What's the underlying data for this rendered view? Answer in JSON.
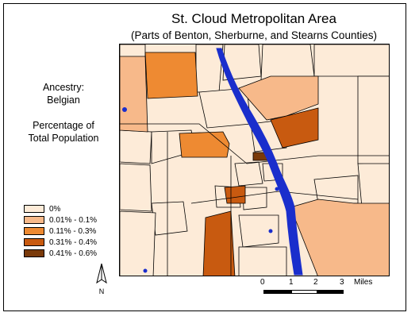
{
  "title": "St. Cloud Metropolitan Area",
  "subtitle": "(Parts of Benton, Sherburne, and Stearns Counties)",
  "variable": {
    "line1": "Ancestry:",
    "line2": "Belgian"
  },
  "measure": {
    "line1": "Percentage of",
    "line2": "Total Population"
  },
  "legend": [
    {
      "label": "0%",
      "color": "#fdebd8"
    },
    {
      "label": "0.01% - 0.1%",
      "color": "#f7b98a"
    },
    {
      "label": "0.11% - 0.3%",
      "color": "#ee8a32"
    },
    {
      "label": "0.31% - 0.4%",
      "color": "#c85a10"
    },
    {
      "label": "0.41% - 0.6%",
      "color": "#7a3a0a"
    }
  ],
  "scale": {
    "ticks": [
      "0",
      "1",
      "2",
      "3"
    ],
    "unit": "Miles"
  },
  "north": "N",
  "colors": {
    "water": "#1a2ecc",
    "boundary": "#000000"
  }
}
